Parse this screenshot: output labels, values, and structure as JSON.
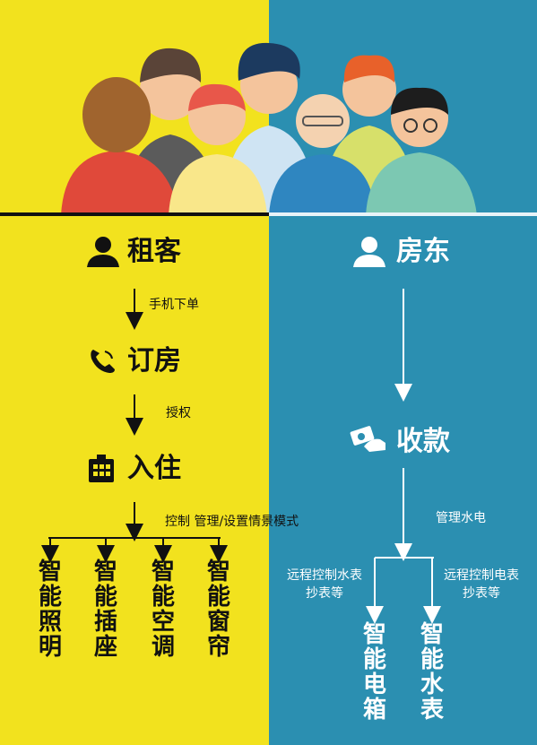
{
  "tenant": {
    "title": "租客",
    "step1_label": "手机下单",
    "booking_title": "订房",
    "step2_label": "授权",
    "checkin_title": "入住",
    "step3_label": "控制  管理/设置情景模式",
    "devices": [
      "智能照明",
      "智能插座",
      "智能空调",
      "智能窗帘"
    ]
  },
  "landlord": {
    "title": "房东",
    "payment_title": "收款",
    "step_label": "管理水电",
    "branch_left_label": [
      "远程控制水表",
      "抄表等"
    ],
    "branch_right_label": [
      "远程控制电表",
      "抄表等"
    ],
    "devices": [
      "智能电箱",
      "智能水表"
    ]
  },
  "colors": {
    "left_bg": "#f2e21e",
    "right_bg": "#2b8fb1",
    "dark": "#111111",
    "light": "#ffffff"
  }
}
